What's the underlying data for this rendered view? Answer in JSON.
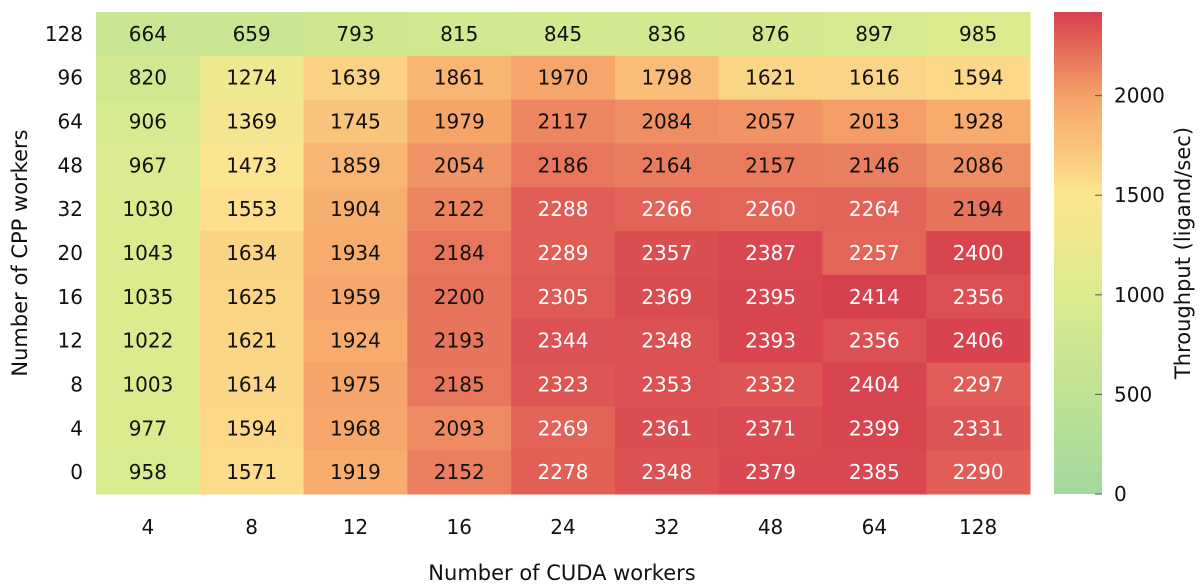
{
  "chart_data": {
    "type": "heatmap",
    "xlabel": "Number of CUDA workers",
    "ylabel": "Number of CPP workers",
    "x_categories": [
      "4",
      "8",
      "12",
      "16",
      "24",
      "32",
      "48",
      "64",
      "128"
    ],
    "y_categories": [
      "128",
      "96",
      "64",
      "48",
      "32",
      "20",
      "16",
      "12",
      "8",
      "4",
      "0"
    ],
    "values": [
      [
        664,
        659,
        793,
        815,
        845,
        836,
        876,
        897,
        985
      ],
      [
        820,
        1274,
        1639,
        1861,
        1970,
        1798,
        1621,
        1616,
        1594
      ],
      [
        906,
        1369,
        1745,
        1979,
        2117,
        2084,
        2057,
        2013,
        1928
      ],
      [
        967,
        1473,
        1859,
        2054,
        2186,
        2164,
        2157,
        2146,
        2086
      ],
      [
        1030,
        1553,
        1904,
        2122,
        2288,
        2266,
        2260,
        2264,
        2194
      ],
      [
        1043,
        1634,
        1934,
        2184,
        2289,
        2357,
        2387,
        2257,
        2400
      ],
      [
        1035,
        1625,
        1959,
        2200,
        2305,
        2369,
        2395,
        2414,
        2356
      ],
      [
        1022,
        1621,
        1924,
        2193,
        2344,
        2348,
        2393,
        2356,
        2406
      ],
      [
        1003,
        1614,
        1975,
        2185,
        2323,
        2353,
        2332,
        2404,
        2297
      ],
      [
        977,
        1594,
        1968,
        2093,
        2269,
        2361,
        2371,
        2399,
        2331
      ],
      [
        958,
        1571,
        1919,
        2152,
        2278,
        2348,
        2379,
        2385,
        2290
      ]
    ],
    "colorbar": {
      "label": "Throughput (ligand/sec)",
      "range": [
        0,
        2420
      ],
      "ticks": [
        0,
        500,
        1000,
        1500,
        2000
      ],
      "colors": {
        "low": "#a3d99b",
        "mid_low": "#d9eb8e",
        "mid": "#fde590",
        "mid_high": "#f6a469",
        "high": "#d7404e"
      }
    },
    "text_colors": {
      "dark": "#111111",
      "light": "#ffffff"
    },
    "light_text_threshold": 2250,
    "grid": false,
    "legend": "colorbar-right"
  }
}
